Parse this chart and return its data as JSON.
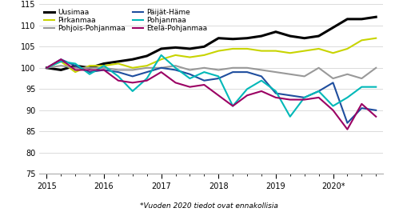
{
  "subtitle": "*Vuoden 2020 tiedot ovat ennakollisia",
  "x_labels": [
    "2015",
    "2016",
    "2017",
    "2018",
    "2019",
    "2020*"
  ],
  "x_major_ticks": [
    0,
    4,
    8,
    12,
    16,
    20
  ],
  "x_minor_ticks": [
    1,
    2,
    3,
    5,
    6,
    7,
    9,
    10,
    11,
    13,
    14,
    15,
    17,
    18,
    19,
    21,
    22,
    23
  ],
  "n_points": 24,
  "ylim": [
    75,
    115
  ],
  "yticks": [
    75,
    80,
    85,
    90,
    95,
    100,
    105,
    110,
    115
  ],
  "series": [
    {
      "name": "Uusimaa",
      "color": "#000000",
      "linewidth": 2.2,
      "data": [
        100.0,
        99.5,
        100.5,
        100.0,
        101.0,
        101.5,
        102.0,
        102.8,
        104.5,
        104.8,
        104.5,
        105.0,
        107.0,
        106.8,
        107.0,
        107.5,
        108.5,
        107.5,
        107.0,
        107.5,
        109.5,
        111.5,
        111.5,
        112.0
      ]
    },
    {
      "name": "Pirkanmaa",
      "color": "#c8d400",
      "linewidth": 1.5,
      "data": [
        100.0,
        101.5,
        99.0,
        100.5,
        100.5,
        101.0,
        100.0,
        100.5,
        102.0,
        103.0,
        102.5,
        103.0,
        104.0,
        104.5,
        104.5,
        104.0,
        104.0,
        103.5,
        104.0,
        104.5,
        103.5,
        104.5,
        106.5,
        107.0
      ]
    },
    {
      "name": "Pohjois-Pohjanmaa",
      "color": "#999999",
      "linewidth": 1.5,
      "data": [
        100.0,
        100.5,
        100.0,
        100.0,
        100.0,
        99.5,
        99.5,
        100.0,
        100.0,
        100.5,
        99.5,
        100.0,
        99.5,
        100.0,
        100.0,
        99.5,
        99.0,
        98.5,
        98.0,
        100.0,
        97.5,
        98.5,
        97.5,
        100.0
      ]
    },
    {
      "name": "Päijät-Häme",
      "color": "#1f4e9e",
      "linewidth": 1.5,
      "data": [
        100.0,
        102.0,
        100.5,
        99.0,
        99.5,
        99.0,
        98.0,
        99.0,
        100.0,
        99.5,
        98.5,
        97.0,
        97.5,
        99.0,
        99.0,
        98.0,
        94.0,
        93.5,
        93.0,
        94.5,
        96.5,
        87.0,
        90.5,
        90.0
      ]
    },
    {
      "name": "Pohjanmaa",
      "color": "#00b8b8",
      "linewidth": 1.5,
      "data": [
        100.0,
        101.5,
        101.0,
        98.5,
        100.5,
        98.0,
        94.5,
        97.5,
        103.0,
        100.0,
        97.5,
        99.0,
        98.0,
        91.0,
        95.0,
        97.0,
        94.5,
        88.5,
        93.0,
        94.5,
        91.0,
        93.0,
        95.5,
        95.5
      ]
    },
    {
      "name": "Etelä-Pohjanmaa",
      "color": "#9b0063",
      "linewidth": 1.5,
      "data": [
        100.0,
        102.0,
        99.5,
        99.5,
        99.5,
        97.0,
        96.5,
        97.0,
        99.0,
        96.5,
        95.5,
        96.0,
        93.5,
        91.0,
        93.5,
        94.5,
        93.0,
        92.5,
        92.5,
        93.0,
        90.0,
        85.5,
        91.5,
        88.5
      ]
    }
  ]
}
